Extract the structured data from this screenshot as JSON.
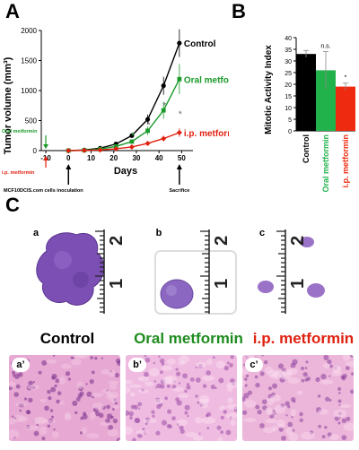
{
  "panel_labels": {
    "a": "A",
    "b": "B",
    "c": "C"
  },
  "chart_data": [
    {
      "type": "line",
      "xlabel": "Days",
      "ylabel": "Tumor volume (mm³)",
      "xlim": [
        -12,
        55
      ],
      "ylim": [
        0,
        2000
      ],
      "xticks": [
        -10,
        0,
        10,
        20,
        30,
        40,
        50
      ],
      "yticks": [
        0,
        500,
        1000,
        1500,
        2000
      ],
      "x": [
        0,
        7,
        14,
        21,
        28,
        35,
        42,
        49
      ],
      "series": [
        {
          "name": "Control",
          "color": "#000000",
          "marker": "circle",
          "values": [
            0,
            10,
            40,
            110,
            250,
            520,
            1080,
            1790
          ],
          "err": [
            0,
            5,
            10,
            20,
            40,
            80,
            150,
            230
          ]
        },
        {
          "name": "Oral metformin",
          "color": "#1a9a2a",
          "marker": "square",
          "values": [
            0,
            5,
            25,
            70,
            150,
            330,
            670,
            1190
          ],
          "err": [
            0,
            5,
            10,
            20,
            35,
            70,
            140,
            250
          ]
        },
        {
          "name": "i.p. metformin",
          "color": "#e02010",
          "marker": "diamond",
          "values": [
            0,
            3,
            10,
            30,
            60,
            120,
            200,
            300
          ],
          "err": [
            0,
            2,
            5,
            10,
            15,
            30,
            50,
            70
          ]
        }
      ],
      "asterisk_label": "*",
      "annotations": {
        "oral_start": "Oral metformin",
        "ip_start": "i.p. metformin",
        "inoculation": "MCF10DCIS.com cells inoculation",
        "sacrifice": "Sacrifice"
      }
    },
    {
      "type": "bar",
      "ylabel": "Mitotic Activity Index",
      "ylim": [
        0,
        40
      ],
      "yticks": [
        0,
        5,
        10,
        15,
        20,
        25,
        30,
        35,
        40
      ],
      "categories": [
        "Control",
        "Oral metformin",
        "i.p. metformin"
      ],
      "values": [
        33,
        26,
        19
      ],
      "err": [
        1.5,
        8,
        1.5
      ],
      "colors": [
        "#000000",
        "#22b24c",
        "#ee2a10"
      ],
      "significance": [
        "",
        "n.s.",
        "*"
      ]
    }
  ],
  "panel_c": {
    "photos": [
      {
        "label": "a",
        "caption": "Control",
        "caption_color": "#000000"
      },
      {
        "label": "b",
        "caption": "Oral metformin",
        "caption_color": "#1e8c1e"
      },
      {
        "label": "c",
        "caption": "i.p. metformin",
        "caption_color": "#e02010"
      }
    ],
    "histology": [
      "a’",
      "b’",
      "c’"
    ],
    "ruler_numbers": [
      "2",
      "1"
    ]
  }
}
